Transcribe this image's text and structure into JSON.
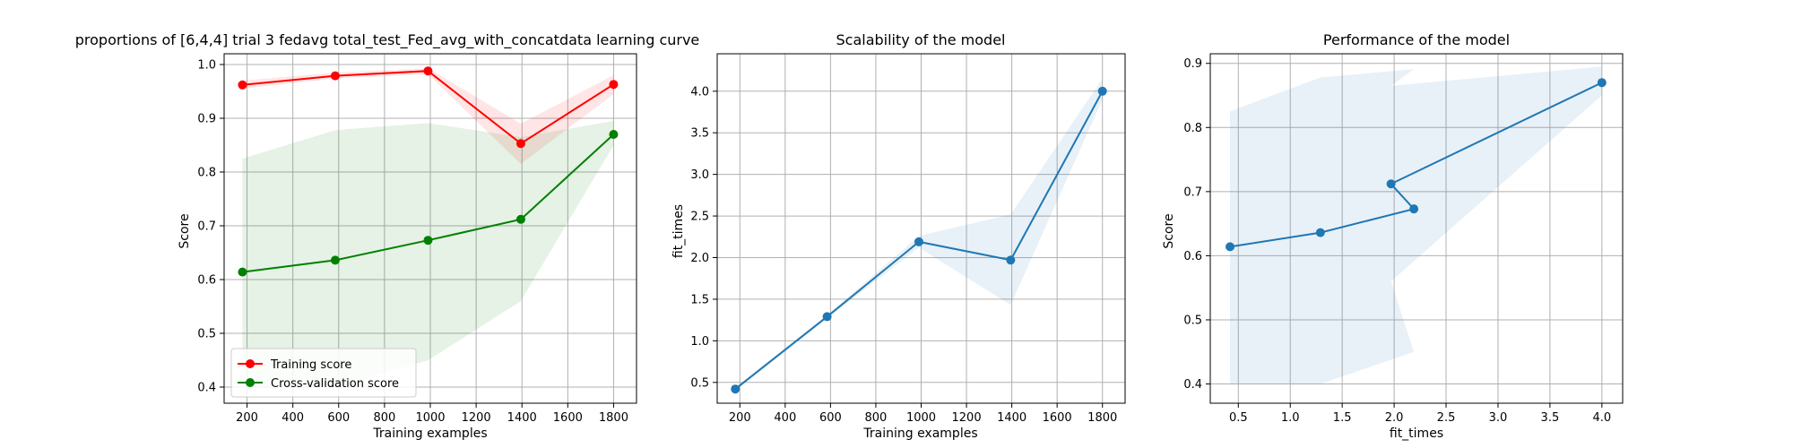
{
  "chart_data": [
    {
      "type": "line",
      "title": "proportions of [6,4,4] trial 3 fedavg total_test_Fed_avg_with_concatdata learning curve",
      "xlabel": "Training examples",
      "ylabel": "Score",
      "xlim": [
        100,
        1900
      ],
      "ylim": [
        0.37,
        1.02
      ],
      "xticks": [
        200,
        400,
        600,
        800,
        1000,
        1200,
        1400,
        1600,
        1800
      ],
      "yticks": [
        0.4,
        0.5,
        0.6,
        0.7,
        0.8,
        0.9,
        1.0
      ],
      "grid": true,
      "legend": "lower-left",
      "series": [
        {
          "name": "Training score",
          "color": "#ff0000",
          "x": [
            180,
            585,
            990,
            1395,
            1800
          ],
          "values": [
            0.962,
            0.979,
            0.988,
            0.853,
            0.963
          ],
          "band_low": [
            0.955,
            0.974,
            0.982,
            0.815,
            0.945
          ],
          "band_high": [
            0.97,
            0.985,
            0.993,
            0.89,
            0.98
          ]
        },
        {
          "name": "Cross-validation score",
          "color": "#008000",
          "x": [
            180,
            585,
            990,
            1395,
            1800
          ],
          "values": [
            0.614,
            0.636,
            0.673,
            0.712,
            0.87
          ],
          "band_low": [
            0.4,
            0.4,
            0.45,
            0.56,
            0.85
          ],
          "band_high": [
            0.825,
            0.878,
            0.891,
            0.865,
            0.895
          ]
        }
      ]
    },
    {
      "type": "line",
      "title": "Scalability of the model",
      "xlabel": "Training examples",
      "ylabel": "fit_times",
      "xlim": [
        100,
        1900
      ],
      "ylim": [
        0.25,
        4.45
      ],
      "xticks": [
        200,
        400,
        600,
        800,
        1000,
        1200,
        1400,
        1600,
        1800
      ],
      "yticks": [
        0.5,
        1.0,
        1.5,
        2.0,
        2.5,
        3.0,
        3.5,
        4.0
      ],
      "grid": true,
      "series": [
        {
          "color": "#1f77b4",
          "x": [
            180,
            585,
            990,
            1395,
            1800
          ],
          "values": [
            0.42,
            1.29,
            2.19,
            1.97,
            4.0
          ],
          "band_low": [
            0.4,
            1.27,
            2.12,
            1.43,
            3.9
          ],
          "band_high": [
            0.44,
            1.31,
            2.26,
            2.52,
            4.15
          ]
        }
      ]
    },
    {
      "type": "line",
      "title": "Performance of the model",
      "xlabel": "fit_times",
      "ylabel": "Score",
      "xlim": [
        0.23,
        4.2
      ],
      "ylim": [
        0.37,
        0.915
      ],
      "xticks": [
        0.5,
        1.0,
        1.5,
        2.0,
        2.5,
        3.0,
        3.5,
        4.0
      ],
      "yticks": [
        0.4,
        0.5,
        0.6,
        0.7,
        0.8,
        0.9
      ],
      "grid": true,
      "series": [
        {
          "color": "#1f77b4",
          "x": [
            0.42,
            1.29,
            2.19,
            1.97,
            4.0
          ],
          "values": [
            0.614,
            0.636,
            0.673,
            0.712,
            0.87
          ],
          "band_low": [
            0.4,
            0.4,
            0.45,
            0.56,
            0.85
          ],
          "band_high": [
            0.825,
            0.878,
            0.891,
            0.865,
            0.895
          ]
        }
      ]
    }
  ]
}
